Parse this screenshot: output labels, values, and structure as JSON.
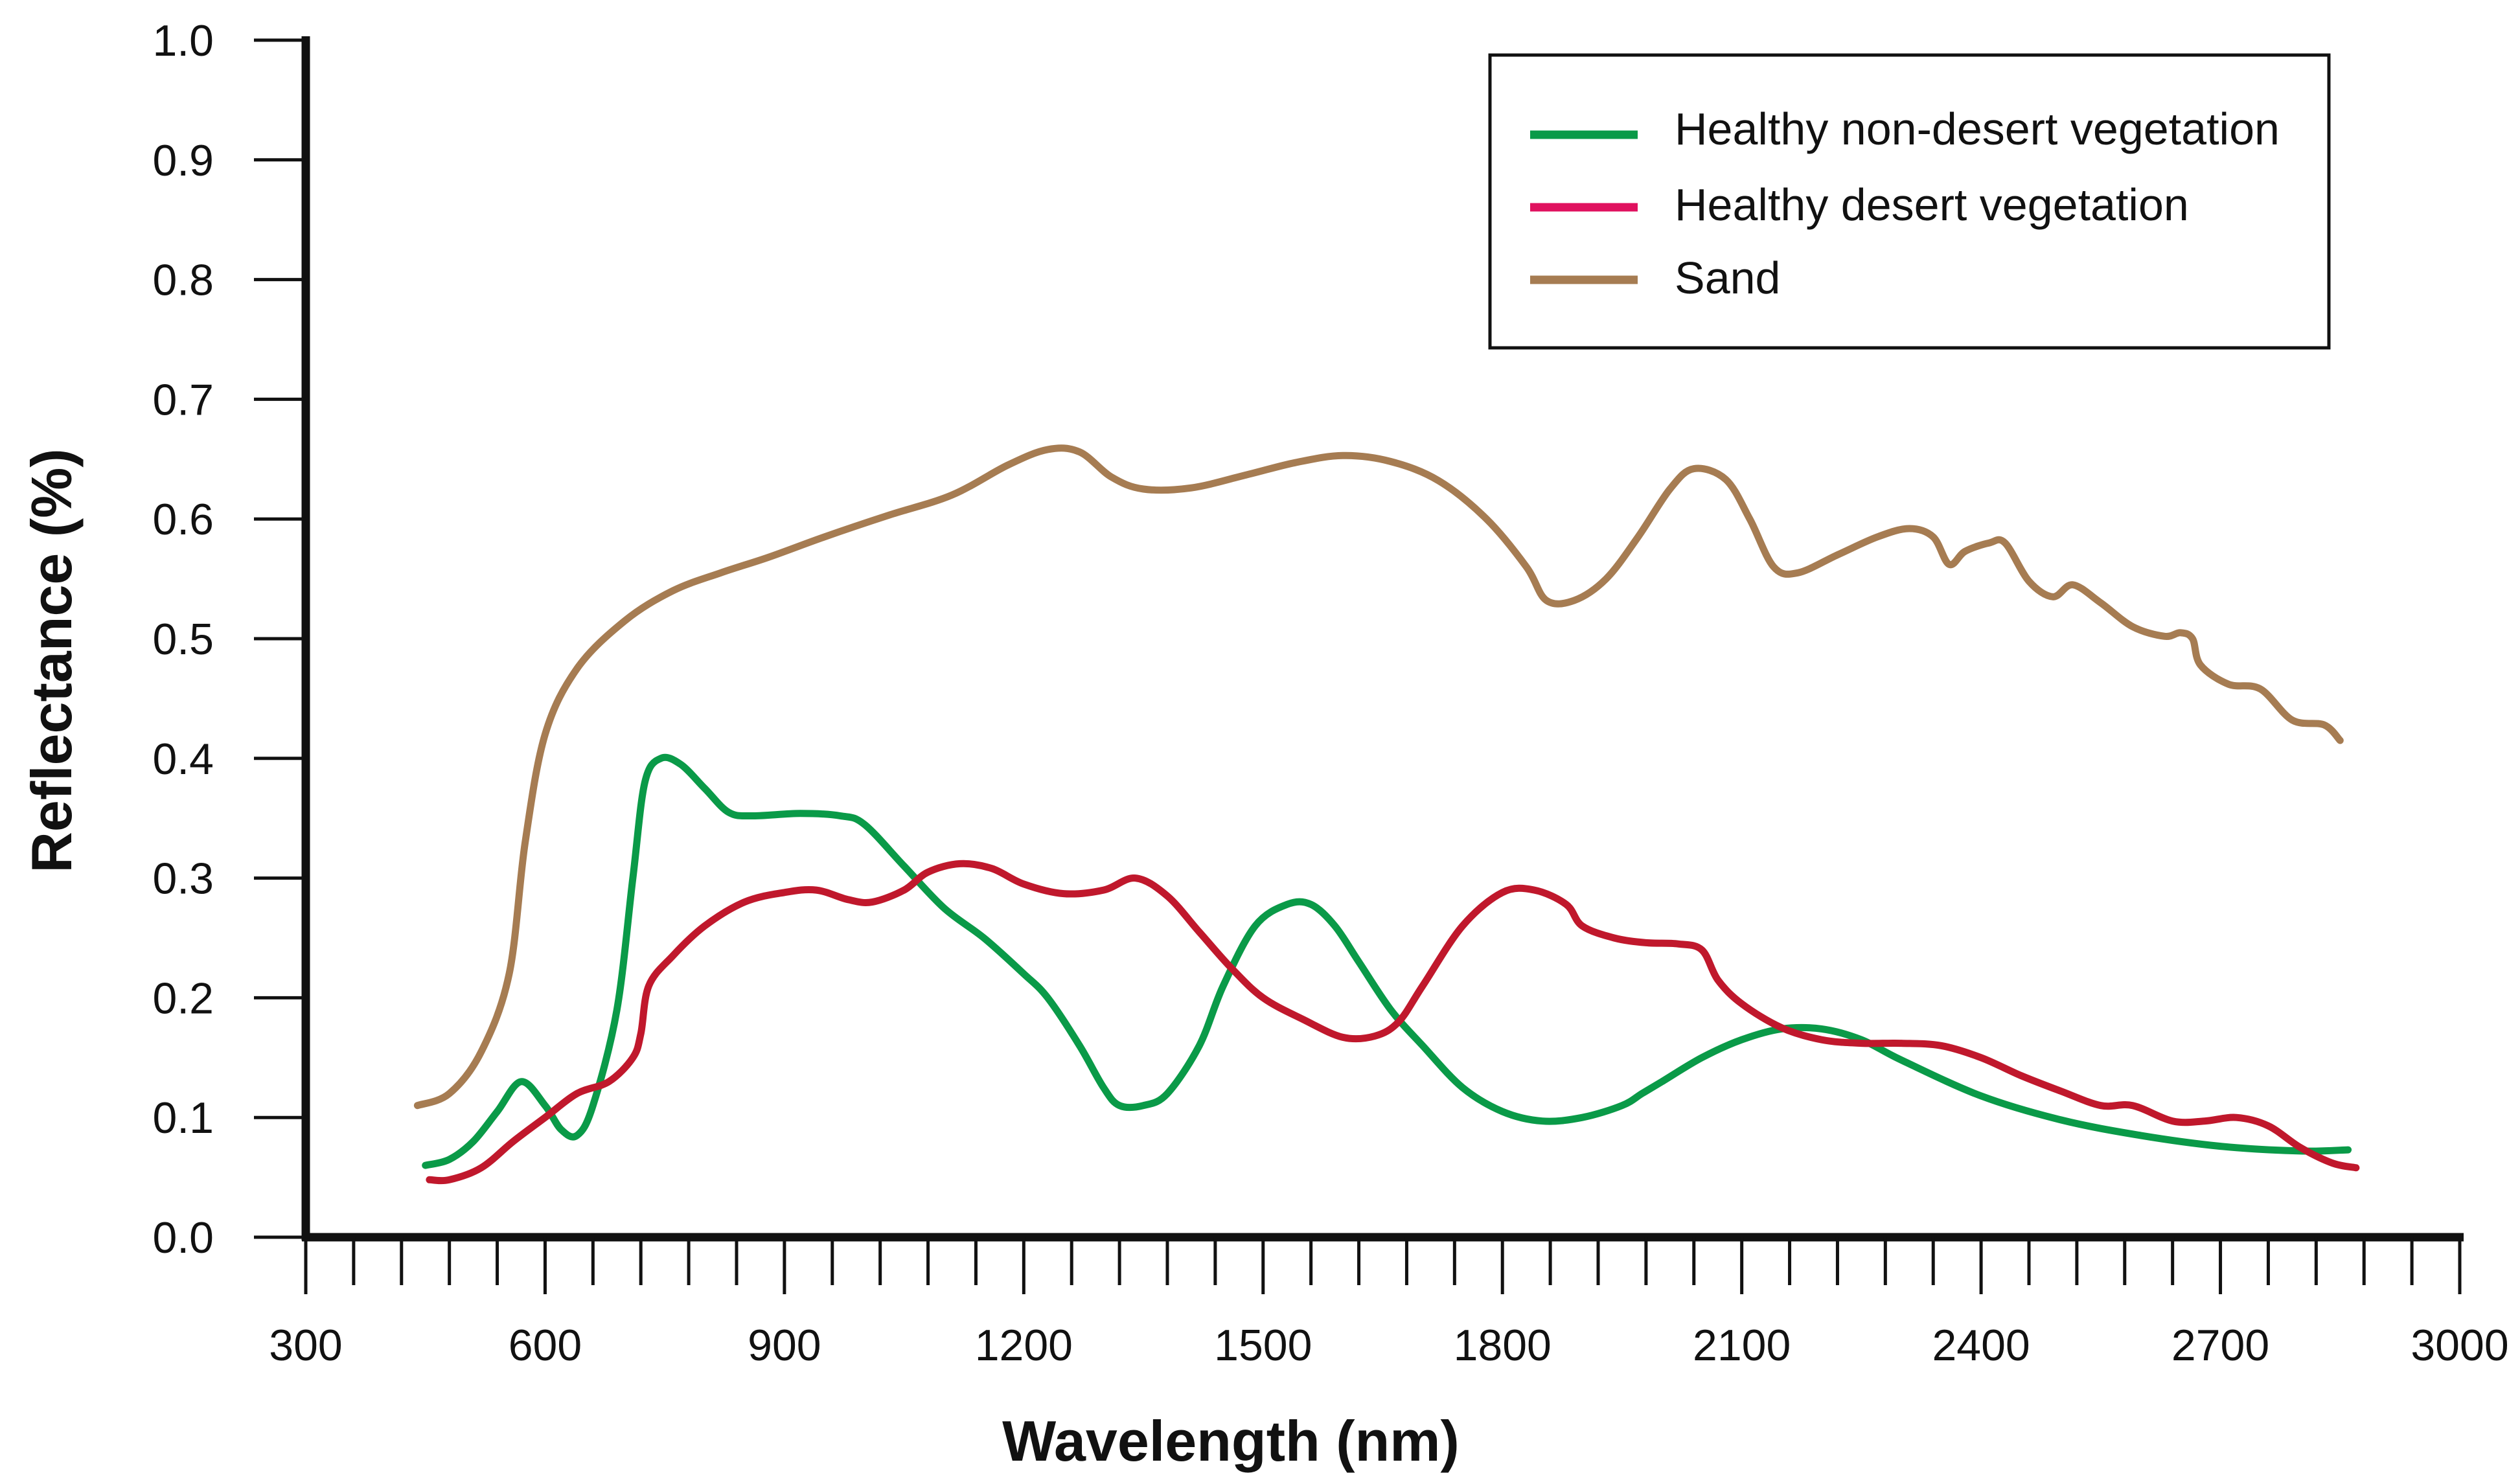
{
  "chart_data": {
    "type": "line",
    "title": "",
    "xlabel": "Wavelength (nm)",
    "ylabel": "Reflectance (%)",
    "xlim": [
      300,
      3000
    ],
    "ylim": [
      0,
      1.0
    ],
    "x_ticks": [
      300,
      600,
      900,
      1200,
      1500,
      1800,
      2100,
      2400,
      2700,
      3000
    ],
    "x_tick_labels": [
      "300",
      "600",
      "900",
      "1200",
      "1500",
      "1800",
      "2100",
      "2400",
      "2700",
      "3000"
    ],
    "x_minor_step": 60,
    "y_ticks": [
      0,
      0.1,
      0.2,
      0.3,
      0.4,
      0.5,
      0.6,
      0.7,
      0.8,
      0.9,
      1.0
    ],
    "y_tick_labels": [
      "0.0",
      "0.1",
      "0.2",
      "0.3",
      "0.4",
      "0.5",
      "0.6",
      "0.7",
      "0.8",
      "0.9",
      "1.0"
    ],
    "grid": false,
    "legend_position": "top-right",
    "series": [
      {
        "name": "Healthy non-desert vegetation",
        "color": "#0a9a48",
        "points": [
          [
            450,
            0.06
          ],
          [
            480,
            0.065
          ],
          [
            510,
            0.08
          ],
          [
            540,
            0.105
          ],
          [
            570,
            0.13
          ],
          [
            600,
            0.11
          ],
          [
            620,
            0.09
          ],
          [
            640,
            0.085
          ],
          [
            660,
            0.11
          ],
          [
            690,
            0.19
          ],
          [
            710,
            0.3
          ],
          [
            725,
            0.38
          ],
          [
            745,
            0.4
          ],
          [
            770,
            0.395
          ],
          [
            800,
            0.375
          ],
          [
            830,
            0.355
          ],
          [
            860,
            0.352
          ],
          [
            920,
            0.354
          ],
          [
            970,
            0.352
          ],
          [
            1000,
            0.345
          ],
          [
            1050,
            0.31
          ],
          [
            1100,
            0.275
          ],
          [
            1150,
            0.25
          ],
          [
            1200,
            0.22
          ],
          [
            1230,
            0.2
          ],
          [
            1270,
            0.16
          ],
          [
            1300,
            0.125
          ],
          [
            1320,
            0.11
          ],
          [
            1350,
            0.11
          ],
          [
            1380,
            0.12
          ],
          [
            1420,
            0.16
          ],
          [
            1450,
            0.21
          ],
          [
            1490,
            0.26
          ],
          [
            1530,
            0.278
          ],
          [
            1560,
            0.278
          ],
          [
            1590,
            0.26
          ],
          [
            1620,
            0.23
          ],
          [
            1660,
            0.19
          ],
          [
            1700,
            0.16
          ],
          [
            1750,
            0.125
          ],
          [
            1800,
            0.105
          ],
          [
            1850,
            0.097
          ],
          [
            1900,
            0.1
          ],
          [
            1950,
            0.11
          ],
          [
            1975,
            0.12
          ],
          [
            2000,
            0.13
          ],
          [
            2050,
            0.15
          ],
          [
            2100,
            0.165
          ],
          [
            2150,
            0.174
          ],
          [
            2200,
            0.174
          ],
          [
            2250,
            0.165
          ],
          [
            2300,
            0.148
          ],
          [
            2400,
            0.118
          ],
          [
            2500,
            0.098
          ],
          [
            2600,
            0.085
          ],
          [
            2700,
            0.076
          ],
          [
            2800,
            0.072
          ],
          [
            2860,
            0.073
          ]
        ]
      },
      {
        "name": "Healthy desert vegetation",
        "color": "#c0182c",
        "legend_color": "#e0115f",
        "points": [
          [
            455,
            0.048
          ],
          [
            480,
            0.048
          ],
          [
            520,
            0.058
          ],
          [
            560,
            0.08
          ],
          [
            600,
            0.1
          ],
          [
            640,
            0.12
          ],
          [
            680,
            0.13
          ],
          [
            710,
            0.15
          ],
          [
            720,
            0.17
          ],
          [
            730,
            0.21
          ],
          [
            760,
            0.235
          ],
          [
            800,
            0.26
          ],
          [
            850,
            0.28
          ],
          [
            900,
            0.288
          ],
          [
            940,
            0.29
          ],
          [
            980,
            0.282
          ],
          [
            1010,
            0.28
          ],
          [
            1050,
            0.29
          ],
          [
            1080,
            0.305
          ],
          [
            1120,
            0.312
          ],
          [
            1160,
            0.308
          ],
          [
            1200,
            0.295
          ],
          [
            1250,
            0.287
          ],
          [
            1300,
            0.29
          ],
          [
            1340,
            0.3
          ],
          [
            1380,
            0.285
          ],
          [
            1420,
            0.255
          ],
          [
            1460,
            0.225
          ],
          [
            1500,
            0.2
          ],
          [
            1550,
            0.182
          ],
          [
            1600,
            0.167
          ],
          [
            1640,
            0.168
          ],
          [
            1670,
            0.18
          ],
          [
            1700,
            0.21
          ],
          [
            1750,
            0.26
          ],
          [
            1800,
            0.288
          ],
          [
            1840,
            0.29
          ],
          [
            1880,
            0.278
          ],
          [
            1900,
            0.26
          ],
          [
            1940,
            0.25
          ],
          [
            1980,
            0.246
          ],
          [
            2020,
            0.245
          ],
          [
            2050,
            0.24
          ],
          [
            2070,
            0.215
          ],
          [
            2100,
            0.195
          ],
          [
            2150,
            0.175
          ],
          [
            2200,
            0.165
          ],
          [
            2250,
            0.162
          ],
          [
            2300,
            0.162
          ],
          [
            2350,
            0.16
          ],
          [
            2400,
            0.15
          ],
          [
            2450,
            0.135
          ],
          [
            2500,
            0.122
          ],
          [
            2550,
            0.11
          ],
          [
            2590,
            0.11
          ],
          [
            2640,
            0.097
          ],
          [
            2680,
            0.097
          ],
          [
            2720,
            0.1
          ],
          [
            2760,
            0.093
          ],
          [
            2800,
            0.075
          ],
          [
            2840,
            0.062
          ],
          [
            2870,
            0.058
          ]
        ]
      },
      {
        "name": "Sand",
        "color": "#a67c52",
        "points": [
          [
            440,
            0.11
          ],
          [
            480,
            0.12
          ],
          [
            520,
            0.155
          ],
          [
            555,
            0.22
          ],
          [
            575,
            0.33
          ],
          [
            600,
            0.42
          ],
          [
            640,
            0.475
          ],
          [
            700,
            0.515
          ],
          [
            760,
            0.54
          ],
          [
            820,
            0.555
          ],
          [
            880,
            0.568
          ],
          [
            950,
            0.585
          ],
          [
            1030,
            0.603
          ],
          [
            1110,
            0.62
          ],
          [
            1180,
            0.645
          ],
          [
            1230,
            0.658
          ],
          [
            1270,
            0.656
          ],
          [
            1310,
            0.635
          ],
          [
            1350,
            0.625
          ],
          [
            1410,
            0.626
          ],
          [
            1480,
            0.637
          ],
          [
            1540,
            0.647
          ],
          [
            1600,
            0.653
          ],
          [
            1660,
            0.648
          ],
          [
            1720,
            0.632
          ],
          [
            1780,
            0.6
          ],
          [
            1830,
            0.56
          ],
          [
            1855,
            0.532
          ],
          [
            1890,
            0.532
          ],
          [
            1930,
            0.55
          ],
          [
            1970,
            0.585
          ],
          [
            2010,
            0.625
          ],
          [
            2040,
            0.642
          ],
          [
            2080,
            0.633
          ],
          [
            2110,
            0.6
          ],
          [
            2140,
            0.56
          ],
          [
            2170,
            0.555
          ],
          [
            2220,
            0.57
          ],
          [
            2270,
            0.585
          ],
          [
            2310,
            0.592
          ],
          [
            2340,
            0.585
          ],
          [
            2360,
            0.562
          ],
          [
            2380,
            0.573
          ],
          [
            2410,
            0.58
          ],
          [
            2430,
            0.58
          ],
          [
            2460,
            0.548
          ],
          [
            2490,
            0.535
          ],
          [
            2515,
            0.545
          ],
          [
            2550,
            0.53
          ],
          [
            2590,
            0.51
          ],
          [
            2630,
            0.502
          ],
          [
            2650,
            0.505
          ],
          [
            2665,
            0.5
          ],
          [
            2675,
            0.478
          ],
          [
            2710,
            0.462
          ],
          [
            2750,
            0.458
          ],
          [
            2790,
            0.432
          ],
          [
            2830,
            0.428
          ],
          [
            2850,
            0.415
          ]
        ]
      }
    ]
  }
}
